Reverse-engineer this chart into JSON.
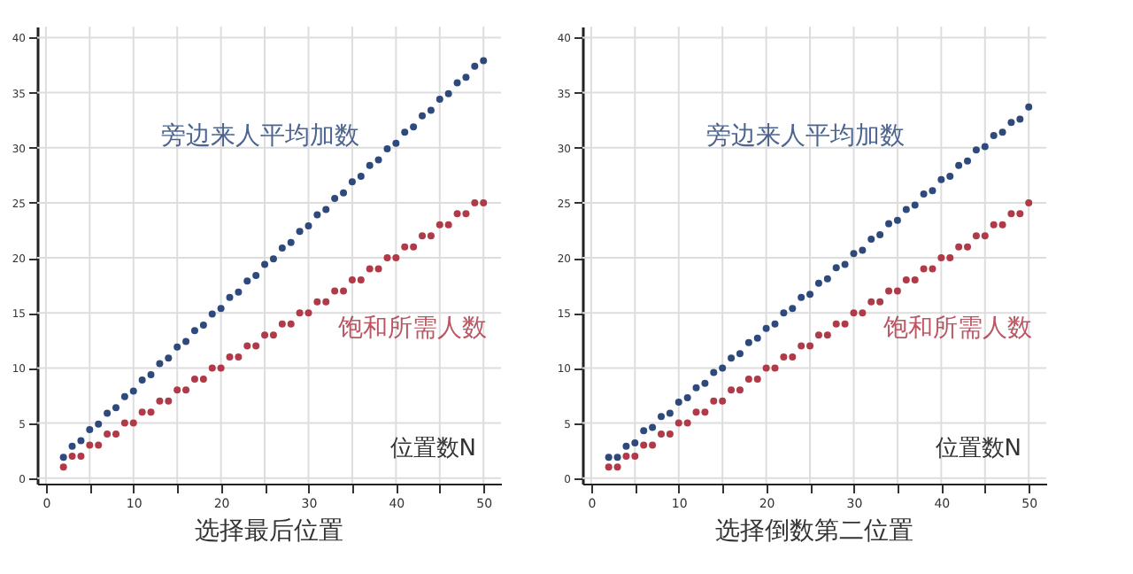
{
  "chart_data": [
    {
      "type": "scatter",
      "title": "选择最后位置",
      "xlabel": "位置数N",
      "marker": "circle",
      "grid": true,
      "x": [
        2,
        3,
        4,
        5,
        6,
        7,
        8,
        9,
        10,
        11,
        12,
        13,
        14,
        15,
        16,
        17,
        18,
        19,
        20,
        21,
        22,
        23,
        24,
        25,
        26,
        27,
        28,
        29,
        30,
        31,
        32,
        33,
        34,
        35,
        36,
        37,
        38,
        39,
        40,
        41,
        42,
        43,
        44,
        45,
        46,
        47,
        48,
        49,
        50
      ],
      "xlim": [
        -1,
        52
      ],
      "xticks": [
        0,
        {
          "value": 5,
          "label": null
        },
        10,
        {
          "value": 15,
          "label": null
        },
        20,
        {
          "value": 25,
          "label": null
        },
        30,
        {
          "value": 35,
          "label": null
        },
        40,
        {
          "value": 45,
          "label": null
        },
        50
      ],
      "ylim": [
        -0.5,
        41
      ],
      "yticks": [
        0,
        5,
        10,
        15,
        20,
        25,
        30,
        35,
        40
      ],
      "series": [
        {
          "name": "旁边来人平均加数",
          "color": "#2e4a7c",
          "values": [
            1.9,
            2.9,
            3.4,
            4.4,
            4.9,
            5.9,
            6.4,
            7.4,
            7.9,
            8.9,
            9.4,
            10.4,
            10.9,
            11.9,
            12.4,
            13.4,
            13.9,
            14.9,
            15.4,
            16.4,
            16.9,
            17.9,
            18.4,
            19.4,
            19.9,
            20.9,
            21.4,
            22.4,
            22.9,
            23.9,
            24.4,
            25.4,
            25.9,
            26.9,
            27.4,
            28.4,
            28.9,
            29.9,
            30.4,
            31.4,
            31.9,
            32.9,
            33.4,
            34.4,
            34.9,
            35.9,
            36.4,
            37.4,
            37.9
          ]
        },
        {
          "name": "饱和所需人数",
          "color": "#b03a48",
          "values": [
            1,
            2,
            2,
            3,
            3,
            4,
            4,
            5,
            5,
            6,
            6,
            7,
            7,
            8,
            8,
            9,
            9,
            10,
            10,
            11,
            11,
            12,
            12,
            13,
            13,
            14,
            14,
            15,
            15,
            16,
            16,
            17,
            17,
            18,
            18,
            19,
            19,
            20,
            20,
            21,
            21,
            22,
            22,
            23,
            23,
            24,
            24,
            25,
            25
          ]
        }
      ]
    },
    {
      "type": "scatter",
      "title": "选择倒数第二位置",
      "xlabel": "位置数N",
      "marker": "circle",
      "grid": true,
      "x": [
        2,
        3,
        4,
        5,
        6,
        7,
        8,
        9,
        10,
        11,
        12,
        13,
        14,
        15,
        16,
        17,
        18,
        19,
        20,
        21,
        22,
        23,
        24,
        25,
        26,
        27,
        28,
        29,
        30,
        31,
        32,
        33,
        34,
        35,
        36,
        37,
        38,
        39,
        40,
        41,
        42,
        43,
        44,
        45,
        46,
        47,
        48,
        49,
        50
      ],
      "xlim": [
        -1,
        52
      ],
      "xticks": [
        0,
        {
          "value": 5,
          "label": null
        },
        10,
        {
          "value": 15,
          "label": null
        },
        20,
        {
          "value": 25,
          "label": null
        },
        30,
        {
          "value": 35,
          "label": null
        },
        40,
        {
          "value": 45,
          "label": null
        },
        50
      ],
      "ylim": [
        -0.5,
        41
      ],
      "yticks": [
        0,
        5,
        10,
        15,
        20,
        25,
        30,
        35,
        40
      ],
      "series": [
        {
          "name": "旁边来人平均加数",
          "color": "#2e4a7c",
          "values": [
            1.9,
            1.9,
            2.9,
            3.2,
            4.3,
            4.6,
            5.6,
            5.9,
            6.9,
            7.3,
            8.2,
            8.6,
            9.6,
            10,
            10.9,
            11.3,
            12.3,
            12.7,
            13.6,
            14,
            15,
            15.4,
            16.4,
            16.7,
            17.7,
            18.1,
            19.1,
            19.4,
            20.4,
            20.7,
            21.7,
            22.1,
            23.1,
            23.4,
            24.4,
            24.8,
            25.8,
            26.1,
            27.1,
            27.4,
            28.4,
            28.8,
            29.8,
            30.1,
            31.1,
            31.4,
            32.3,
            32.6,
            33.7
          ]
        },
        {
          "name": "饱和所需人数",
          "color": "#b03a48",
          "values": [
            1,
            1,
            2,
            2,
            3,
            3,
            4,
            4,
            5,
            5,
            6,
            6,
            7,
            7,
            8,
            8,
            9,
            9,
            10,
            10,
            11,
            11,
            12,
            12,
            13,
            13,
            14,
            14,
            15,
            15,
            16,
            16,
            17,
            17,
            18,
            18,
            19,
            19,
            20,
            20,
            21,
            21,
            22,
            22,
            23,
            23,
            24,
            24,
            25
          ]
        }
      ]
    }
  ]
}
